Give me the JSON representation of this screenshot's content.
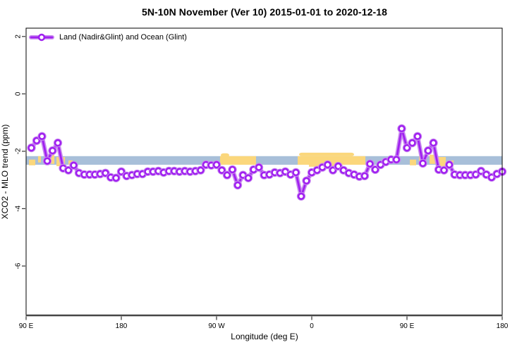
{
  "title": "5N-10N November (Ver 10)   2015-01-01 to 2020-12-18",
  "legend": {
    "label": "Land (Nadir&Glint) and Ocean (Glint)"
  },
  "colors": {
    "series": "#a020f0",
    "series_halo": "#c98cef",
    "marker_fill": "#ffffff",
    "ocean_strip": "#a8bfd9",
    "land_strip": "#fbd77c",
    "plot_border": "#000000",
    "axis_baseline": "#474747",
    "tick": "#333333",
    "background": "#ffffff",
    "text": "#000000"
  },
  "chart_data": {
    "type": "line",
    "title": "5N-10N November (Ver 10)   2015-01-01 to 2020-12-18",
    "xlabel": "Longitude (deg E)",
    "ylabel": "XCO2 - MLO trend (ppm)",
    "xlim": [
      90,
      540
    ],
    "ylim": [
      -7.72,
      2.29
    ],
    "grid": false,
    "legend_position": "top-left",
    "x_ticks": [
      {
        "value": 90,
        "label": "90 E"
      },
      {
        "value": 180,
        "label": "180"
      },
      {
        "value": 270,
        "label": "90 W"
      },
      {
        "value": 360,
        "label": "0"
      },
      {
        "value": 450,
        "label": "90 E"
      },
      {
        "value": 540,
        "label": "180"
      }
    ],
    "y_ticks": [
      {
        "value": 2,
        "label": "2"
      },
      {
        "value": 0,
        "label": "0"
      },
      {
        "value": -2,
        "label": "-2"
      },
      {
        "value": -4,
        "label": "-4"
      },
      {
        "value": -6,
        "label": "-6"
      }
    ],
    "series": [
      {
        "name": "Land (Nadir&Glint) and Ocean (Glint)",
        "marker": "open-circle",
        "color": "#a020f0",
        "halo_color": "#c98cef",
        "x": [
          95,
          100,
          105,
          110,
          115,
          120,
          125,
          130,
          135,
          140,
          145,
          150,
          155,
          160,
          165,
          170,
          175,
          180,
          185,
          190,
          195,
          200,
          205,
          210,
          215,
          220,
          225,
          230,
          235,
          240,
          245,
          250,
          255,
          260,
          265,
          270,
          275,
          280,
          285,
          290,
          295,
          300,
          305,
          310,
          315,
          320,
          325,
          330,
          335,
          340,
          345,
          350,
          355,
          360,
          365,
          370,
          375,
          380,
          385,
          390,
          395,
          400,
          405,
          410,
          415,
          420,
          425,
          430,
          435,
          440,
          445,
          450,
          455,
          460,
          465,
          470,
          475,
          480,
          485,
          490,
          495,
          500,
          505,
          510,
          515,
          520,
          525,
          530,
          535,
          540
        ],
        "values": [
          -1.88,
          -1.63,
          -1.48,
          -2.34,
          -1.98,
          -1.71,
          -2.59,
          -2.66,
          -2.49,
          -2.76,
          -2.81,
          -2.81,
          -2.81,
          -2.79,
          -2.76,
          -2.91,
          -2.93,
          -2.71,
          -2.86,
          -2.83,
          -2.79,
          -2.79,
          -2.71,
          -2.71,
          -2.69,
          -2.74,
          -2.69,
          -2.69,
          -2.71,
          -2.69,
          -2.71,
          -2.69,
          -2.66,
          -2.47,
          -2.49,
          -2.47,
          -2.66,
          -2.83,
          -2.64,
          -3.18,
          -2.83,
          -2.93,
          -2.64,
          -2.56,
          -2.83,
          -2.81,
          -2.74,
          -2.76,
          -2.71,
          -2.81,
          -2.74,
          -3.57,
          -3.03,
          -2.74,
          -2.66,
          -2.56,
          -2.47,
          -2.66,
          -2.52,
          -2.66,
          -2.76,
          -2.81,
          -2.88,
          -2.86,
          -2.44,
          -2.64,
          -2.47,
          -2.37,
          -2.29,
          -2.29,
          -1.21,
          -1.88,
          -1.71,
          -1.48,
          -2.42,
          -1.98,
          -1.71,
          -2.64,
          -2.66,
          -2.47,
          -2.81,
          -2.83,
          -2.83,
          -2.83,
          -2.81,
          -2.69,
          -2.81,
          -2.91,
          -2.79,
          -2.71
        ]
      }
    ],
    "ocean_land_strip": {
      "ocean_color": "#a8bfd9",
      "land_color": "#fbd77c",
      "value_top": -2.17,
      "value_bottom": -2.47,
      "lon_range": [
        90,
        540
      ],
      "land_segments": [
        {
          "lon1": 92.7,
          "lon2": 98.7,
          "v1": -2.29,
          "v2": -2.49
        },
        {
          "lon1": 101.3,
          "lon2": 104.0,
          "v1": -2.17,
          "v2": -2.39
        },
        {
          "lon1": 111.3,
          "lon2": 116.7,
          "v1": -2.12,
          "v2": -2.44
        },
        {
          "lon1": 118.7,
          "lon2": 126.7,
          "v1": -2.2,
          "v2": -2.52
        },
        {
          "lon1": 130.0,
          "lon2": 134.0,
          "v1": -2.32,
          "v2": -2.47
        },
        {
          "lon1": 273.3,
          "lon2": 307.3,
          "v1": -2.17,
          "v2": -2.47
        },
        {
          "lon1": 274.0,
          "lon2": 282.0,
          "v1": -2.07,
          "v2": -2.2,
          "rounded": true
        },
        {
          "lon1": 346.7,
          "lon2": 410.7,
          "v1": -2.17,
          "v2": -2.47
        },
        {
          "lon1": 348.0,
          "lon2": 400.0,
          "v1": -2.05,
          "v2": -2.17,
          "rounded": true
        },
        {
          "lon1": 357.3,
          "lon2": 384.0,
          "v1": -2.47,
          "v2": -2.54
        },
        {
          "lon1": 452.7,
          "lon2": 458.7,
          "v1": -2.29,
          "v2": -2.49
        },
        {
          "lon1": 461.3,
          "lon2": 464.0,
          "v1": -2.17,
          "v2": -2.39
        },
        {
          "lon1": 471.3,
          "lon2": 476.7,
          "v1": -2.12,
          "v2": -2.44
        },
        {
          "lon1": 478.7,
          "lon2": 486.7,
          "v1": -2.2,
          "v2": -2.52
        },
        {
          "lon1": 490.0,
          "lon2": 494.0,
          "v1": -2.32,
          "v2": -2.47
        }
      ]
    }
  }
}
